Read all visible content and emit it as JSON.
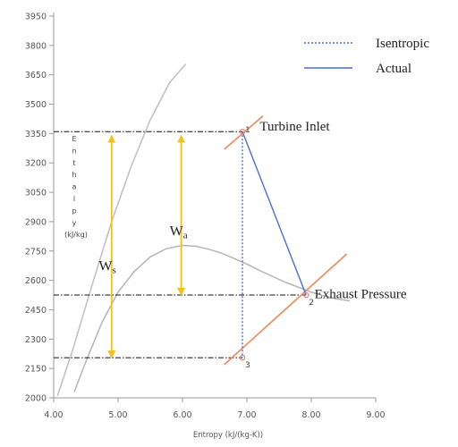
{
  "chart_data": {
    "type": "line",
    "title": "",
    "xlabel": "Entropy (kJ/(kg-K))",
    "ylabel": "Enthalpy (kJ/kg)",
    "xlim": [
      4.0,
      9.0
    ],
    "ylim": [
      2000,
      3950
    ],
    "x_ticks": [
      4.0,
      5.0,
      6.0,
      7.0,
      8.0,
      9.0
    ],
    "x_tick_labels": [
      "4.00",
      "5.00",
      "6.00",
      "7.00",
      "8.00",
      "9.00"
    ],
    "y_ticks": [
      2000,
      2150,
      2300,
      2450,
      2600,
      2750,
      2900,
      3050,
      3200,
      3350,
      3500,
      3650,
      3800,
      3950
    ],
    "y_tick_labels": [
      "2000",
      "2150",
      "2300",
      "2450",
      "2600",
      "2750",
      "2900",
      "3050",
      "3200",
      "3350",
      "3500",
      "3650",
      "3800",
      "3950"
    ],
    "grid": false,
    "legend": {
      "position": "top-right",
      "entries": [
        {
          "label": "Isentropic",
          "style": "dotted",
          "color": "#4a6fd0"
        },
        {
          "label": "Actual",
          "style": "solid",
          "color": "#4a6fd0"
        }
      ]
    },
    "series": [
      {
        "name": "Isentropic",
        "color": "#4a6fd0",
        "style": "dotted",
        "x": [
          6.93,
          6.93
        ],
        "y": [
          3360,
          2205
        ]
      },
      {
        "name": "Actual",
        "color": "#4a6fd0",
        "style": "solid",
        "x": [
          6.93,
          7.92
        ],
        "y": [
          3360,
          2525
        ]
      }
    ],
    "curves": [
      {
        "role": "saturation-dome",
        "color": "#b8b8b8",
        "x": [
          4.32,
          4.5,
          4.75,
          5.0,
          5.25,
          5.5,
          5.75,
          6.0,
          6.2,
          6.4,
          6.6,
          6.8,
          7.0,
          7.2,
          7.4,
          7.6,
          7.8,
          8.0,
          8.2,
          8.4,
          8.6
        ],
        "y": [
          2030,
          2185,
          2385,
          2540,
          2645,
          2720,
          2762,
          2778,
          2775,
          2760,
          2740,
          2712,
          2683,
          2650,
          2620,
          2590,
          2565,
          2540,
          2520,
          2505,
          2495
        ]
      },
      {
        "role": "constant-pressure-line",
        "color": "#c8c0c0",
        "x": [
          4.06,
          4.3,
          4.6,
          4.9,
          5.2,
          5.5,
          5.8,
          6.05
        ],
        "y": [
          2010,
          2250,
          2580,
          2900,
          3180,
          3420,
          3610,
          3705
        ]
      }
    ],
    "state_points": [
      {
        "label": "1",
        "x": 6.93,
        "y": 3360,
        "color": "#e0857a"
      },
      {
        "label": "2",
        "x": 7.92,
        "y": 2525,
        "color": "#e0857a"
      },
      {
        "label": "3",
        "x": 6.93,
        "y": 2205,
        "color": "#e0857a"
      }
    ],
    "isobars": [
      {
        "role": "turbine-inlet",
        "color": "#e8956b",
        "x": [
          6.65,
          7.25
        ],
        "y": [
          3270,
          3440
        ]
      },
      {
        "role": "exhaust-pressure",
        "color": "#e8956b",
        "x": [
          6.65,
          8.55
        ],
        "y": [
          2170,
          2735
        ]
      }
    ],
    "reference_lines": [
      {
        "y": 3360,
        "x_from": 4.0,
        "x_to": 6.93
      },
      {
        "y": 2525,
        "x_from": 4.0,
        "x_to": 7.92
      },
      {
        "y": 2205,
        "x_from": 4.0,
        "x_to": 6.93
      }
    ],
    "work_arrows": [
      {
        "label": "Ws",
        "x": 4.9,
        "y_from": 3340,
        "y_to": 2205,
        "color": "#f2c21a"
      },
      {
        "label": "Wa",
        "x": 5.98,
        "y_from": 3340,
        "y_to": 2525,
        "color": "#f2c21a"
      }
    ],
    "annotations": [
      {
        "text": "Turbine Inlet",
        "x": 7.2,
        "y": 3365
      },
      {
        "text": "Exhaust Pressure",
        "x": 8.05,
        "y": 2510
      }
    ],
    "work_labels": [
      {
        "main": "W",
        "sub": "s",
        "x": 4.7,
        "y": 2650
      },
      {
        "main": "W",
        "sub": "a",
        "x": 5.8,
        "y": 2830
      }
    ]
  }
}
